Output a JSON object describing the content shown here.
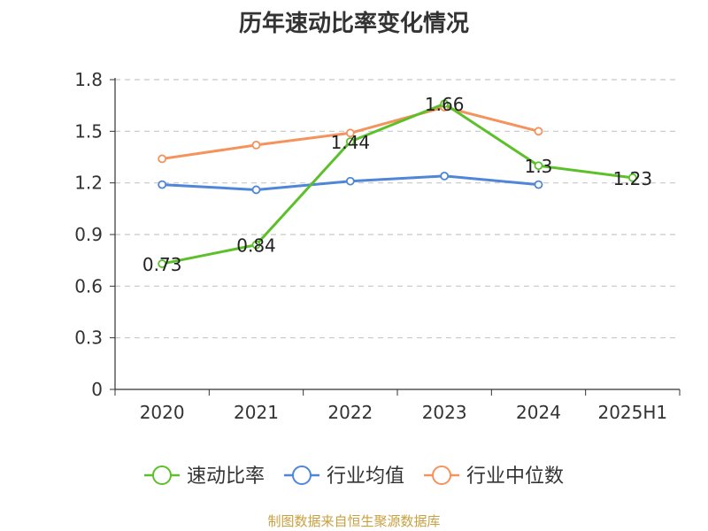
{
  "chart_data": {
    "type": "line",
    "title": "历年速动比率变化情况",
    "categories": [
      "2020",
      "2021",
      "2022",
      "2023",
      "2024",
      "2025H1"
    ],
    "y_ticks": [
      "0",
      "0.3",
      "0.6",
      "0.9",
      "1.2",
      "1.5",
      "1.8"
    ],
    "ylim": [
      0,
      1.8
    ],
    "grid": true,
    "legend_position": "bottom",
    "series": [
      {
        "name": "速动比率",
        "color": "#5cc02a",
        "values": [
          0.73,
          0.84,
          1.44,
          1.66,
          1.3,
          1.23
        ],
        "labels": [
          "0.73",
          "0.84",
          "1.44",
          "1.66",
          "1.3",
          "1.23"
        ]
      },
      {
        "name": "行业均值",
        "color": "#4f86d8",
        "values": [
          1.19,
          1.16,
          1.21,
          1.24,
          1.19,
          null
        ]
      },
      {
        "name": "行业中位数",
        "color": "#f4935b",
        "values": [
          1.34,
          1.42,
          1.49,
          1.64,
          1.5,
          null
        ]
      }
    ]
  },
  "footer": {
    "source": "制图数据来自恒生聚源数据库"
  }
}
